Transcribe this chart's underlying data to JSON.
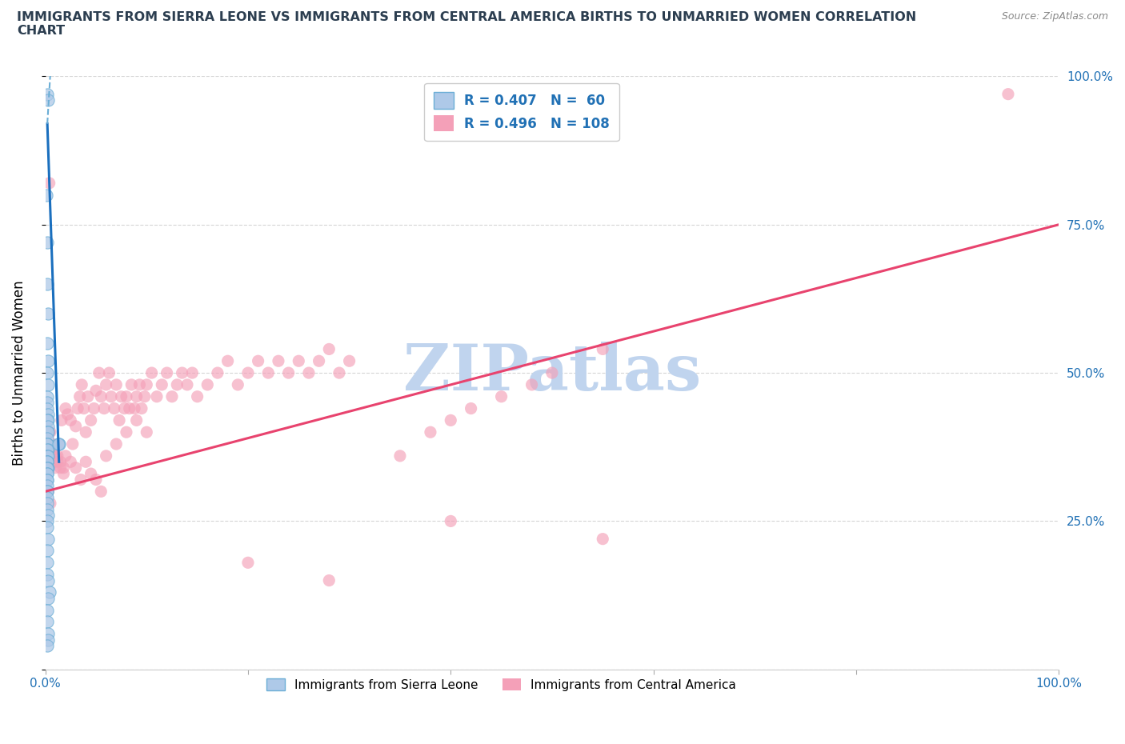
{
  "title": "IMMIGRANTS FROM SIERRA LEONE VS IMMIGRANTS FROM CENTRAL AMERICA BIRTHS TO UNMARRIED WOMEN CORRELATION\nCHART",
  "source_text": "Source: ZipAtlas.com",
  "ylabel": "Births to Unmarried Women",
  "xlim": [
    0,
    1.0
  ],
  "ylim": [
    0,
    1.0
  ],
  "grid_color": "#cccccc",
  "watermark_text": "ZIPatlas",
  "watermark_color": "#c0d4ee",
  "blue_color": "#6baed6",
  "blue_fill": "#aec9e8",
  "pink_color": "#f4a0b8",
  "blue_line_color": "#1a6fbe",
  "blue_line_dashed_color": "#6baed6",
  "pink_line_color": "#e8436e",
  "legend_R1": "R = 0.407",
  "legend_N1": "N =  60",
  "legend_R2": "R = 0.496",
  "legend_N2": "N = 108",
  "blue_scatter_x": [
    0.002,
    0.003,
    0.001,
    0.002,
    0.002,
    0.003,
    0.002,
    0.003,
    0.002,
    0.003,
    0.002,
    0.002,
    0.002,
    0.003,
    0.003,
    0.002,
    0.003,
    0.002,
    0.003,
    0.002,
    0.002,
    0.002,
    0.003,
    0.002,
    0.002,
    0.002,
    0.003,
    0.002,
    0.002,
    0.002,
    0.003,
    0.002,
    0.002,
    0.002,
    0.002,
    0.002,
    0.002,
    0.002,
    0.002,
    0.002,
    0.002,
    0.002,
    0.002,
    0.003,
    0.002,
    0.002,
    0.003,
    0.002,
    0.002,
    0.002,
    0.003,
    0.004,
    0.014,
    0.013,
    0.003,
    0.002,
    0.002,
    0.003,
    0.003,
    0.002
  ],
  "blue_scatter_y": [
    0.97,
    0.96,
    0.8,
    0.72,
    0.65,
    0.6,
    0.55,
    0.52,
    0.5,
    0.48,
    0.46,
    0.45,
    0.44,
    0.43,
    0.42,
    0.42,
    0.41,
    0.4,
    0.4,
    0.39,
    0.38,
    0.38,
    0.37,
    0.37,
    0.36,
    0.36,
    0.36,
    0.35,
    0.35,
    0.35,
    0.34,
    0.34,
    0.34,
    0.33,
    0.33,
    0.32,
    0.32,
    0.31,
    0.3,
    0.3,
    0.29,
    0.28,
    0.27,
    0.26,
    0.25,
    0.24,
    0.22,
    0.2,
    0.18,
    0.16,
    0.15,
    0.13,
    0.38,
    0.38,
    0.12,
    0.1,
    0.08,
    0.06,
    0.05,
    0.04
  ],
  "pink_scatter_x": [
    0.003,
    0.005,
    0.007,
    0.008,
    0.01,
    0.012,
    0.013,
    0.015,
    0.016,
    0.018,
    0.02,
    0.022,
    0.025,
    0.027,
    0.03,
    0.032,
    0.034,
    0.036,
    0.038,
    0.04,
    0.042,
    0.045,
    0.048,
    0.05,
    0.053,
    0.055,
    0.058,
    0.06,
    0.063,
    0.065,
    0.068,
    0.07,
    0.073,
    0.075,
    0.078,
    0.08,
    0.083,
    0.085,
    0.088,
    0.09,
    0.093,
    0.095,
    0.098,
    0.1,
    0.105,
    0.11,
    0.115,
    0.12,
    0.125,
    0.13,
    0.135,
    0.14,
    0.145,
    0.15,
    0.16,
    0.17,
    0.18,
    0.19,
    0.2,
    0.21,
    0.22,
    0.23,
    0.24,
    0.25,
    0.26,
    0.27,
    0.28,
    0.29,
    0.3,
    0.006,
    0.008,
    0.01,
    0.012,
    0.015,
    0.018,
    0.02,
    0.025,
    0.03,
    0.035,
    0.04,
    0.045,
    0.05,
    0.055,
    0.06,
    0.07,
    0.08,
    0.09,
    0.1,
    0.004,
    0.35,
    0.38,
    0.4,
    0.42,
    0.45,
    0.48,
    0.5,
    0.55,
    0.003,
    0.003,
    0.003,
    0.004,
    0.95,
    0.003,
    0.005,
    0.4,
    0.55,
    0.2,
    0.28
  ],
  "pink_scatter_y": [
    0.38,
    0.4,
    0.38,
    0.37,
    0.36,
    0.35,
    0.38,
    0.34,
    0.42,
    0.33,
    0.44,
    0.43,
    0.42,
    0.38,
    0.41,
    0.44,
    0.46,
    0.48,
    0.44,
    0.4,
    0.46,
    0.42,
    0.44,
    0.47,
    0.5,
    0.46,
    0.44,
    0.48,
    0.5,
    0.46,
    0.44,
    0.48,
    0.42,
    0.46,
    0.44,
    0.46,
    0.44,
    0.48,
    0.44,
    0.46,
    0.48,
    0.44,
    0.46,
    0.48,
    0.5,
    0.46,
    0.48,
    0.5,
    0.46,
    0.48,
    0.5,
    0.48,
    0.5,
    0.46,
    0.48,
    0.5,
    0.52,
    0.48,
    0.5,
    0.52,
    0.5,
    0.52,
    0.5,
    0.52,
    0.5,
    0.52,
    0.54,
    0.5,
    0.52,
    0.36,
    0.35,
    0.34,
    0.36,
    0.35,
    0.34,
    0.36,
    0.35,
    0.34,
    0.32,
    0.35,
    0.33,
    0.32,
    0.3,
    0.36,
    0.38,
    0.4,
    0.42,
    0.4,
    0.82,
    0.36,
    0.4,
    0.42,
    0.44,
    0.46,
    0.48,
    0.5,
    0.54,
    0.38,
    0.37,
    0.36,
    0.4,
    0.97,
    0.3,
    0.28,
    0.25,
    0.22,
    0.18,
    0.15
  ]
}
